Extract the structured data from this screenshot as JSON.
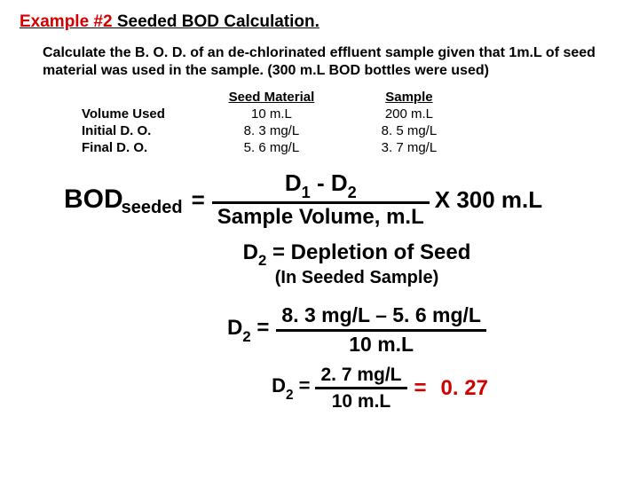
{
  "title": {
    "prefix": "Example #2",
    "rest": " Seeded BOD Calculation."
  },
  "problem": "Calculate the B. O. D. of an de-chlorinated effluent sample given that 1m.L of seed material was used in the sample. (300 m.L BOD bottles were used)",
  "table": {
    "cols": {
      "seed": "Seed Material",
      "sample": "Sample"
    },
    "rows": {
      "vol": {
        "label": "Volume Used",
        "seed": "10 m.L",
        "sample": "200 m.L"
      },
      "ido": {
        "label": "Initial D. O.",
        "seed": "8. 3 mg/L",
        "sample": "8. 5 mg/L"
      },
      "fdo": {
        "label": "Final D. O.",
        "seed": "5. 6 mg/L",
        "sample": "3. 7 mg/L"
      }
    }
  },
  "formula": {
    "lhs": "BOD",
    "lhs_sub": "seeded",
    "eq": "=",
    "num_d1": "D",
    "num_s1": "1",
    "num_minus": "  -  ",
    "num_d2": "D",
    "num_s2": "2",
    "den": "Sample Volume, m.L",
    "tail": "X 300 m.L"
  },
  "depletion": {
    "line": "D",
    "sub": "2",
    "rest": " = Depletion of Seed",
    "note": "(In Seeded Sample)"
  },
  "d2calc": {
    "lhs_d": "D",
    "lhs_s": "2",
    "eq": " = ",
    "num": "8. 3 mg/L – 5. 6 mg/L",
    "den": "10 m.L"
  },
  "d2res": {
    "lhs_d": "D",
    "lhs_s": "2",
    "eq": " = ",
    "num": "2. 7 mg/L",
    "den": "10 m.L",
    "res_eq": "=",
    "res": "  0. 27"
  },
  "colors": {
    "accent": "#d40000",
    "text": "#000000",
    "bg": "#ffffff"
  }
}
